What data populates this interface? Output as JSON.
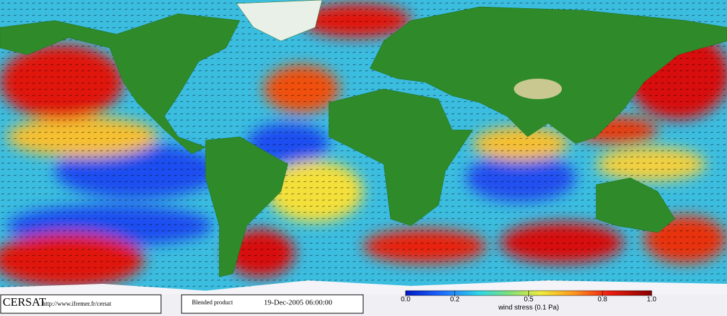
{
  "footer": {
    "logo": "CERSAT",
    "url": "http://www.ifremer.fr/cersat",
    "product": "Blended product",
    "date": "19-Dec-2005 06:00:00"
  },
  "colorbar": {
    "title": "wind stress (0.1 Pa)",
    "lim": [
      0,
      1
    ],
    "ticks": [
      {
        "value": 0,
        "label": "0.0"
      },
      0.2,
      0.5,
      0.8,
      {
        "value": 1,
        "label": "1.0"
      }
    ]
  }
}
